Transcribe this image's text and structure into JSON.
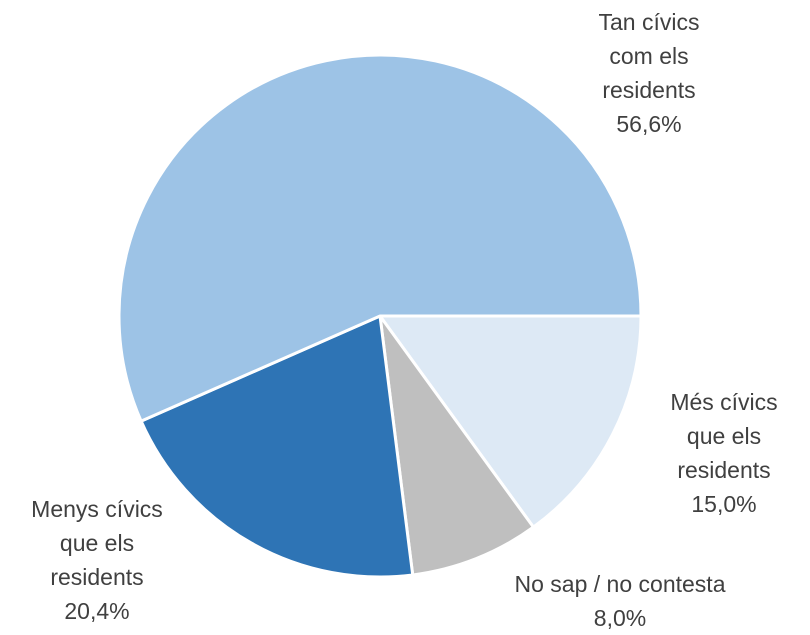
{
  "chart_data": {
    "type": "pie",
    "start_angle_deg": 0,
    "direction": "clockwise",
    "legend": "none",
    "slices": [
      {
        "name": "Més cívics que els residents",
        "label_lines": [
          "Més cívics",
          "que els",
          "residents"
        ],
        "value": 15.0,
        "value_label": "15,0%",
        "color": "#DDE9F5"
      },
      {
        "name": "No sap / no contesta",
        "label_lines": [
          "No sap / no contesta"
        ],
        "value": 8.0,
        "value_label": "8,0%",
        "color": "#BFBFBF"
      },
      {
        "name": "Menys cívics que els residents",
        "label_lines": [
          "Menys cívics",
          "que els",
          "residents"
        ],
        "value": 20.4,
        "value_label": "20,4%",
        "color": "#2E74B5"
      },
      {
        "name": "Tan cívics com els residents",
        "label_lines": [
          "Tan cívics",
          "com els",
          "residents"
        ],
        "value": 56.6,
        "value_label": "56,6%",
        "color": "#9DC3E6"
      }
    ]
  }
}
